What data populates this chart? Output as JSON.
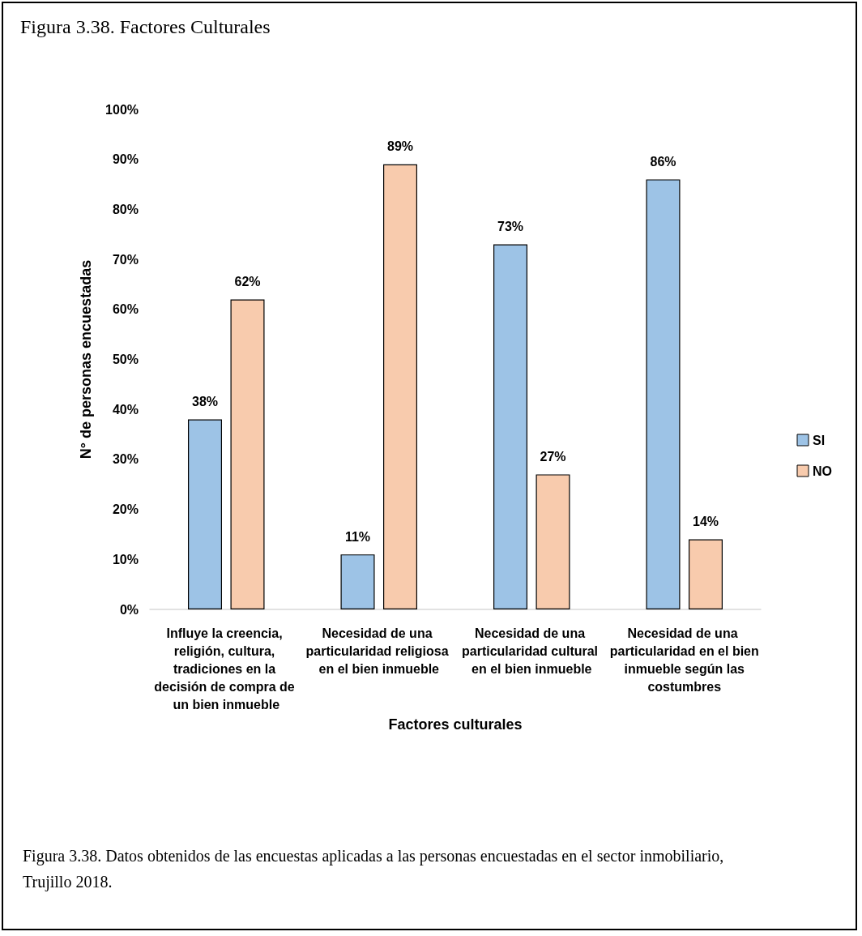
{
  "chart_data": {
    "type": "bar",
    "title": "Figura 3.38. Factores Culturales",
    "xlabel": "Factores culturales",
    "ylabel": "N° de personas encuestadas",
    "categories": [
      "Influye la creencia, religión, cultura, tradiciones en la decisión de compra de un bien inmueble",
      "Necesidad de una particularidad religiosa en el bien inmueble",
      "Necesidad de una particularidad cultural en el bien inmueble",
      "Necesidad de una particularidad en el bien inmueble según las costumbres"
    ],
    "series": [
      {
        "name": "SI",
        "color": "#9dc3e6",
        "values": [
          38,
          11,
          73,
          86
        ],
        "value_labels": [
          "38%",
          "11%",
          "73%",
          "86%"
        ]
      },
      {
        "name": "NO",
        "color": "#f8cbad",
        "values": [
          62,
          89,
          27,
          14
        ],
        "value_labels": [
          "62%",
          "89%",
          "27%",
          "14%"
        ]
      }
    ],
    "ylim": [
      0,
      100
    ],
    "yticks": [
      {
        "value": 0,
        "label": "0%"
      },
      {
        "value": 10,
        "label": "10%"
      },
      {
        "value": 20,
        "label": "20%"
      },
      {
        "value": 30,
        "label": "30%"
      },
      {
        "value": 40,
        "label": "40%"
      },
      {
        "value": 50,
        "label": "50%"
      },
      {
        "value": 60,
        "label": "60%"
      },
      {
        "value": 70,
        "label": "70%"
      },
      {
        "value": 80,
        "label": "80%"
      },
      {
        "value": 90,
        "label": "90%"
      },
      {
        "value": 100,
        "label": "100%"
      }
    ],
    "legend": "right",
    "annotations": [
      "Figura 3.38. Datos obtenidos de las encuestas aplicadas a las personas encuestadas en el sector inmobiliario, Trujillo 2018."
    ]
  }
}
